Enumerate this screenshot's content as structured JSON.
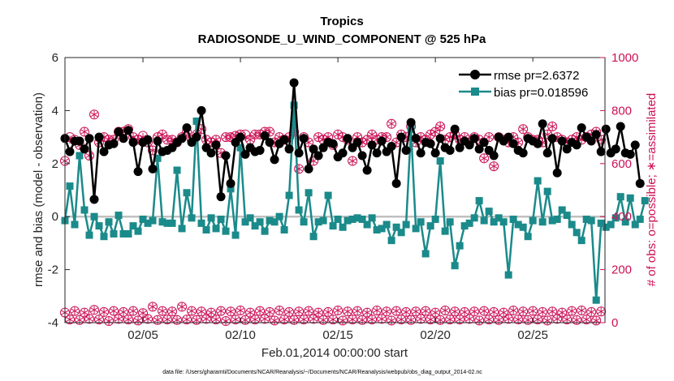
{
  "chart_data": {
    "type": "line",
    "title": "Tropics",
    "subtitle": "RADIOSONDE_U_WIND_COMPONENT @ 525 hPa",
    "xlabel": "Feb.01,2014 00:00:00 start",
    "ylabel": "rmse and bias (model - observation)",
    "y2label": "# of obs: o=possible; ∗=assimilated",
    "footnote": "data file: /Users/gharamti/Documents/NCAR/Reanalysis/~/Documents/NCAR/Reanalysis/webpub/obs_diag_output_2014-02.nc",
    "x_start_day": 1,
    "x_step_days": 0.25,
    "xlim": [
      1,
      28.7
    ],
    "ylim": [
      -4,
      6
    ],
    "y2lim": [
      0,
      1000
    ],
    "x_ticks": [
      5,
      10,
      15,
      20,
      25
    ],
    "x_tick_labels": [
      "02/05",
      "02/10",
      "02/15",
      "02/20",
      "02/25"
    ],
    "y_ticks": [
      -4,
      -2,
      0,
      2,
      4,
      6
    ],
    "y_tick_labels": [
      "-4",
      "-2",
      "0",
      "2",
      "4",
      "6"
    ],
    "y2_ticks": [
      0,
      200,
      400,
      600,
      800,
      1000
    ],
    "y2_tick_labels": [
      "0",
      "200",
      "400",
      "600",
      "800",
      "1000"
    ],
    "colors": {
      "rmse": "#000000",
      "bias": "#1b8a8a",
      "obs": "#cc1155",
      "zero_line": "#c0c0c0",
      "axis": "#262626"
    },
    "series": [
      {
        "name": "rmse",
        "legend": "rmse pr=2.6372",
        "values": [
          2.95,
          2.45,
          2.85,
          2.85,
          2.55,
          2.95,
          0.65,
          3.0,
          2.45,
          2.7,
          2.75,
          3.2,
          2.95,
          3.25,
          2.8,
          1.7,
          2.8,
          2.9,
          1.8,
          2.85,
          2.45,
          2.5,
          2.6,
          2.8,
          2.95,
          3.35,
          2.8,
          3.0,
          4.0,
          2.6,
          2.4,
          2.7,
          0.75,
          2.3,
          1.25,
          2.8,
          3.0,
          2.35,
          2.6,
          2.45,
          2.5,
          3.05,
          2.8,
          2.15,
          2.75,
          2.9,
          2.55,
          5.05,
          2.4,
          2.95,
          1.8,
          2.55,
          2.3,
          2.6,
          2.8,
          2.75,
          2.25,
          2.4,
          2.95,
          2.6,
          2.8,
          2.3,
          1.75,
          2.7,
          2.4,
          2.85,
          2.45,
          2.65,
          1.25,
          3.0,
          2.5,
          3.55,
          2.95,
          2.4,
          2.8,
          2.75,
          2.4,
          2.95,
          2.6,
          2.5,
          3.3,
          2.6,
          2.85,
          2.7,
          2.95,
          2.55,
          2.8,
          2.5,
          2.3,
          3.0,
          2.85,
          3.0,
          2.75,
          2.5,
          2.4,
          2.95,
          2.85,
          2.75,
          3.5,
          2.4,
          2.95,
          1.65,
          2.85,
          2.55,
          2.8,
          2.7,
          3.35,
          3.0,
          2.85,
          3.1,
          2.45,
          3.3,
          2.4,
          2.55,
          3.4,
          2.4,
          2.35,
          2.7,
          1.25
        ],
        "display_min": -4,
        "display_max": 6
      },
      {
        "name": "bias",
        "legend": "bias pr=0.018596",
        "values": [
          -0.15,
          1.15,
          -0.3,
          2.3,
          0.25,
          -0.7,
          0.0,
          -0.35,
          -0.75,
          -0.2,
          -0.65,
          0.05,
          -0.65,
          -0.65,
          -0.35,
          -0.55,
          -0.1,
          -0.25,
          -0.15,
          2.2,
          -0.2,
          -0.25,
          -0.25,
          1.75,
          -0.45,
          0.9,
          -0.05,
          3.6,
          -0.25,
          -0.5,
          -0.05,
          -0.45,
          -0.1,
          -0.55,
          1.05,
          -0.7,
          2.6,
          -0.2,
          -0.05,
          -0.35,
          -0.2,
          -0.55,
          -0.15,
          -0.2,
          0.0,
          -0.5,
          0.8,
          4.2,
          0.25,
          -0.2,
          0.9,
          -0.75,
          -0.2,
          -0.15,
          0.8,
          -0.35,
          -0.1,
          -0.4,
          -0.15,
          -0.1,
          -0.05,
          -0.1,
          -0.3,
          -0.05,
          -0.5,
          -0.45,
          -0.3,
          -0.9,
          -0.4,
          -0.6,
          -0.3,
          3.3,
          -0.45,
          -0.2,
          -1.4,
          -0.35,
          -0.1,
          2.1,
          -0.55,
          -0.2,
          -1.85,
          -1.1,
          -0.35,
          -0.25,
          -0.05,
          0.6,
          -0.15,
          0.2,
          -0.2,
          -0.05,
          -0.2,
          -2.2,
          -0.1,
          -0.3,
          -0.4,
          -0.75,
          -0.15,
          1.35,
          -0.2,
          0.95,
          -0.15,
          -0.1,
          0.25,
          0.05,
          -0.3,
          -0.6,
          -0.9,
          -0.1,
          -0.15,
          -3.15,
          -0.25,
          -0.4,
          -0.3,
          -0.05,
          0.75,
          -0.2,
          0.7,
          -0.3,
          -0.1,
          0.6
        ],
        "display_min": -4,
        "display_max": 6
      },
      {
        "name": "obs_possible",
        "marker": "o",
        "values": [
          610,
          700,
          690,
          670,
          720,
          630,
          785,
          680,
          700,
          690,
          690,
          720,
          720,
          730,
          700,
          690,
          705,
          680,
          650,
          700,
          710,
          690,
          690,
          680,
          700,
          720,
          690,
          710,
          730,
          690,
          680,
          690,
          640,
          700,
          700,
          705,
          710,
          710,
          690,
          710,
          710,
          720,
          720,
          680,
          700,
          690,
          700,
          720,
          580,
          700,
          680,
          610,
          700,
          690,
          700,
          670,
          710,
          700,
          690,
          610,
          700,
          680,
          690,
          710,
          690,
          700,
          700,
          750,
          680,
          710,
          700,
          740,
          680,
          700,
          690,
          710,
          720,
          740,
          690,
          700,
          710,
          690,
          700,
          680,
          700,
          690,
          620,
          700,
          590,
          700,
          690,
          680,
          700,
          680,
          730,
          700,
          690,
          690,
          680,
          710,
          740,
          700,
          690,
          680,
          690,
          700,
          690,
          700,
          710,
          720,
          690,
          710,
          700,
          690,
          720,
          700,
          700,
          710,
          730
        ],
        "display_min": 0,
        "display_max": 1000
      },
      {
        "name": "obs_assimilated",
        "marker": "*",
        "values": [
          610,
          690,
          690,
          670,
          720,
          630,
          785,
          680,
          700,
          690,
          690,
          720,
          720,
          730,
          700,
          690,
          700,
          680,
          650,
          700,
          710,
          690,
          690,
          680,
          700,
          720,
          690,
          710,
          730,
          690,
          680,
          690,
          640,
          700,
          700,
          705,
          710,
          700,
          690,
          710,
          710,
          720,
          720,
          680,
          700,
          690,
          700,
          720,
          580,
          700,
          680,
          610,
          700,
          690,
          700,
          670,
          710,
          700,
          690,
          610,
          700,
          680,
          690,
          710,
          690,
          700,
          700,
          750,
          680,
          710,
          700,
          740,
          680,
          700,
          690,
          710,
          720,
          740,
          690,
          700,
          710,
          690,
          700,
          680,
          700,
          690,
          620,
          700,
          590,
          700,
          690,
          680,
          700,
          680,
          730,
          700,
          690,
          690,
          680,
          710,
          740,
          700,
          690,
          680,
          690,
          700,
          690,
          700,
          710,
          720,
          690,
          710,
          700,
          690,
          720,
          700,
          700,
          710,
          730
        ],
        "display_min": 0,
        "display_max": 1000
      },
      {
        "name": "obs_possible_low",
        "marker": "o",
        "values": [
          38,
          12,
          44,
          10,
          38,
          14,
          48,
          12,
          40,
          6,
          44,
          14,
          40,
          12,
          44,
          8,
          36,
          14,
          60,
          10,
          44,
          12,
          42,
          10,
          60,
          12,
          44,
          10,
          42,
          14,
          38,
          12,
          44,
          6,
          42,
          12,
          46,
          10,
          38,
          12,
          44,
          14,
          40,
          8,
          46,
          12,
          40,
          10,
          42,
          12,
          44,
          14,
          38,
          10,
          40,
          12,
          46,
          8,
          42,
          12,
          44,
          10,
          38,
          12,
          46,
          14,
          42,
          8,
          44,
          12,
          40,
          10,
          42,
          14,
          44,
          12,
          38,
          10,
          46,
          12,
          42,
          12,
          40,
          14,
          42,
          8,
          44,
          12,
          40,
          10,
          38,
          14,
          46,
          12,
          42,
          10,
          44,
          12,
          40,
          8,
          42,
          14,
          38,
          12,
          44,
          10,
          46,
          12,
          40,
          8,
          42,
          12,
          44,
          12,
          60,
          10,
          42,
          6,
          8
        ],
        "display_min": 0,
        "display_max": 1000
      }
    ],
    "legend_position": "top-right"
  }
}
